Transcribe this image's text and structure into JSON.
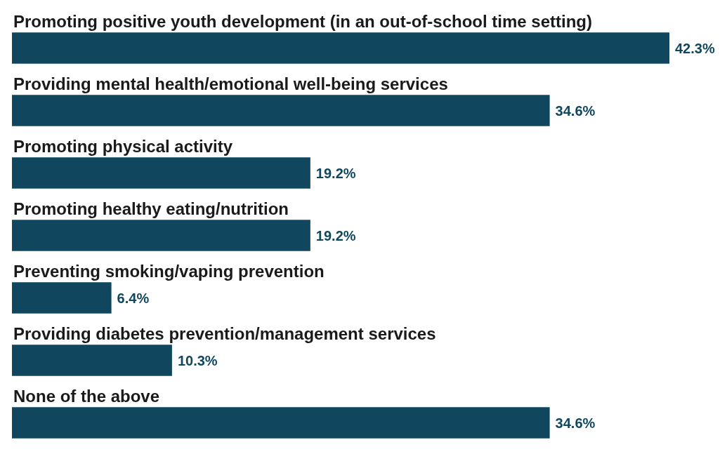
{
  "chart_data": {
    "type": "bar",
    "orientation": "horizontal",
    "categories": [
      "Promoting positive youth development (in an out-of-school time setting)",
      "Providing mental health/emotional well-being services",
      "Promoting physical activity",
      "Promoting healthy eating/nutrition",
      "Preventing smoking/vaping prevention",
      "Providing diabetes prevention/management services",
      "None of the above"
    ],
    "values": [
      42.3,
      34.6,
      19.2,
      19.2,
      6.4,
      10.3,
      34.6
    ],
    "value_labels": [
      "42.3%",
      "34.6%",
      "19.2%",
      "19.2%",
      "6.4%",
      "10.3%",
      "34.6%"
    ],
    "color": "#10475f"
  }
}
